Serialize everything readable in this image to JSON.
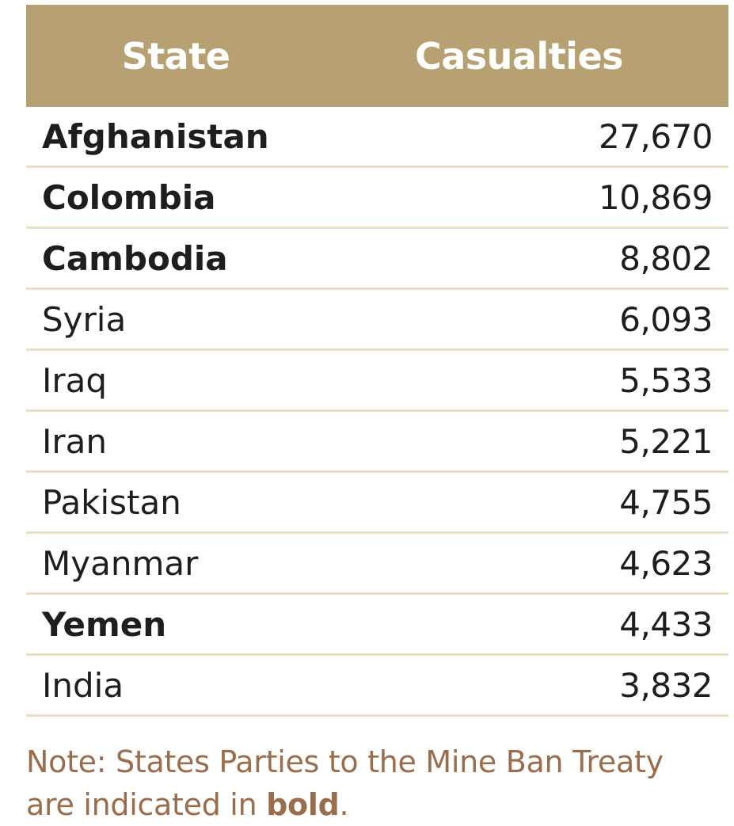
{
  "colors": {
    "header_bg": "#b7a172",
    "note_text": "#9a6d4d",
    "row_divider": "#e8dfc5"
  },
  "table": {
    "headers": {
      "state": "State",
      "casualties": "Casualties"
    },
    "rows": [
      {
        "state": "Afghanistan",
        "value": "27,670",
        "bold": true
      },
      {
        "state": "Colombia",
        "value": "10,869",
        "bold": true
      },
      {
        "state": "Cambodia",
        "value": "8,802",
        "bold": true
      },
      {
        "state": "Syria",
        "value": "6,093",
        "bold": false
      },
      {
        "state": "Iraq",
        "value": "5,533",
        "bold": false
      },
      {
        "state": "Iran",
        "value": "5,221",
        "bold": false
      },
      {
        "state": "Pakistan",
        "value": "4,755",
        "bold": false
      },
      {
        "state": "Myanmar",
        "value": "4,623",
        "bold": false
      },
      {
        "state": "Yemen",
        "value": "4,433",
        "bold": true
      },
      {
        "state": "India",
        "value": "3,832",
        "bold": false
      }
    ]
  },
  "note": {
    "line1": "Note: States Parties to the Mine Ban Treaty",
    "line2_pre": "are indicated in ",
    "line2_bold": "bold",
    "line2_post": "."
  }
}
